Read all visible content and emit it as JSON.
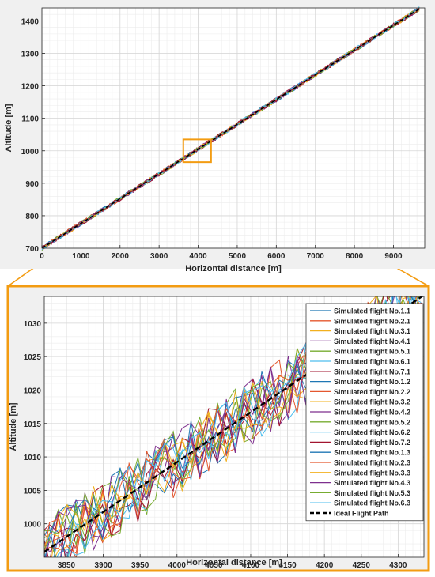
{
  "colors": {
    "accent": "#f39c12",
    "grid_minor": "#ececec",
    "grid_major": "#d6d6d6",
    "outer_bg": "#f0f0f0",
    "series": [
      "#1f77b4",
      "#e4572e",
      "#f2b01e",
      "#7e2f8e",
      "#77ac30",
      "#4dbeee",
      "#a2142f"
    ]
  },
  "chart_data": [
    {
      "type": "line",
      "xlabel": "Horizontal distance [m]",
      "ylabel": "Altitude [m]",
      "xlim": [
        0,
        9800
      ],
      "ylim": [
        700,
        1440
      ],
      "xticks": [
        0,
        1000,
        2000,
        3000,
        4000,
        5000,
        6000,
        7000,
        8000,
        9000
      ],
      "yticks": [
        700,
        800,
        900,
        1000,
        1100,
        1200,
        1300,
        1400
      ],
      "grid": true,
      "ideal_path": {
        "x": [
          0,
          9700
        ],
        "y": [
          700,
          1440
        ]
      },
      "zoom_box": {
        "x": [
          3620,
          4330
        ],
        "y": [
          965,
          1035
        ]
      }
    },
    {
      "type": "line",
      "xlabel": "Horizontal distance [m]",
      "ylabel": "Altitude [m]",
      "xlim": [
        3820,
        4335
      ],
      "ylim": [
        995,
        1034
      ],
      "xticks": [
        3850,
        3900,
        3950,
        4000,
        4050,
        4100,
        4150,
        4200,
        4250,
        4300
      ],
      "yticks": [
        1000,
        1005,
        1010,
        1015,
        1020,
        1025,
        1030
      ],
      "grid": true,
      "legend_position": "top-right",
      "legend": [
        "Simulated flight No.1.1",
        "Simulated flight No.2.1",
        "Simulated flight No.3.1",
        "Simulated flight No.4.1",
        "Simulated flight No.5.1",
        "Simulated flight No.6.1",
        "Simulated flight No.7.1",
        "Simulated flight No.1.2",
        "Simulated flight No.2.2",
        "Simulated flight No.3.2",
        "Simulated flight No.4.2",
        "Simulated flight No.5.2",
        "Simulated flight No.6.2",
        "Simulated flight No.7.2",
        "Simulated flight No.1.3",
        "Simulated flight No.2.3",
        "Simulated flight No.3.3",
        "Simulated flight No.4.3",
        "Simulated flight No.5.3",
        "Simulated flight No.6.3",
        "Ideal Flight Path"
      ],
      "ideal_path": {
        "x": [
          3820,
          4335
        ],
        "y": [
          995.8,
          1034.2
        ]
      },
      "series_noise_amplitude": 5
    }
  ]
}
